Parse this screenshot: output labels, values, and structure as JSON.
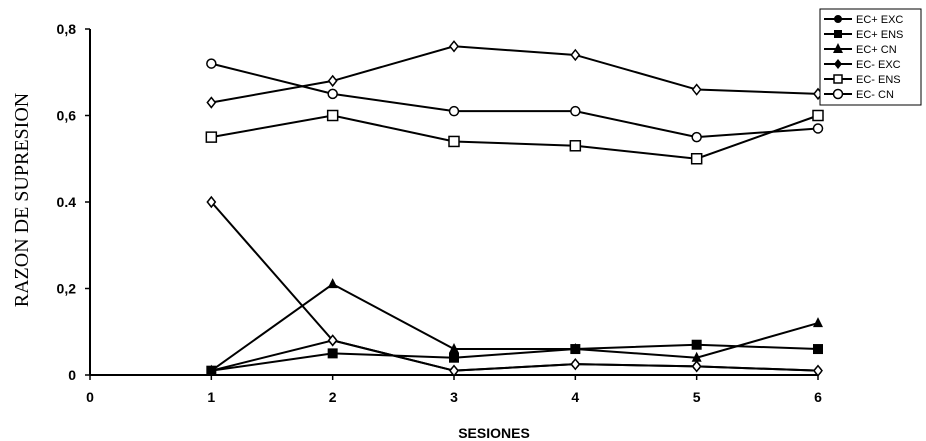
{
  "chart_data": {
    "type": "line",
    "xlabel": "SESIONES",
    "ylabel": "RAZON DE SUPRESION",
    "xlim": [
      0,
      6
    ],
    "ylim": [
      0,
      0.8
    ],
    "x_ticks": [
      "0",
      "1",
      "2",
      "3",
      "4",
      "5",
      "6"
    ],
    "y_ticks": [
      {
        "value": 0,
        "label": "0"
      },
      {
        "value": 0.2,
        "label": "0,2"
      },
      {
        "value": 0.4,
        "label": "0.4"
      },
      {
        "value": 0.6,
        "label": "0,6"
      },
      {
        "value": 0.8,
        "label": "0,8"
      }
    ],
    "grid": false,
    "legend_position": "top-right",
    "x": [
      1,
      2,
      3,
      4,
      5,
      6
    ],
    "series": [
      {
        "name": "EC+ EXC",
        "marker": "circle-filled",
        "values": [
          0.01,
          0.08,
          0.01,
          0.025,
          0.02,
          0.01
        ]
      },
      {
        "name": "EC+ ENS",
        "marker": "square-filled",
        "values": [
          0.01,
          0.05,
          0.04,
          0.06,
          0.07,
          0.06
        ]
      },
      {
        "name": "EC+ CN",
        "marker": "triangle-filled",
        "values": [
          0.01,
          0.21,
          0.06,
          0.06,
          0.04,
          0.12
        ]
      },
      {
        "name": "EC- EXC",
        "marker": "diamond-open",
        "values": [
          0.4,
          0.08,
          0.01,
          0.025,
          0.02,
          0.01
        ]
      },
      {
        "name": "EC- ENS",
        "marker": "square-open",
        "values": [
          0.55,
          0.6,
          0.54,
          0.53,
          0.5,
          0.6
        ]
      },
      {
        "name": "EC- CN",
        "marker": "circle-open",
        "values": [
          0.72,
          0.65,
          0.61,
          0.61,
          0.55,
          0.57
        ]
      }
    ],
    "extra_series_note": "",
    "upper_diamond_series": {
      "marker": "diamond-open",
      "values": [
        0.63,
        0.68,
        0.76,
        0.74,
        0.66,
        0.65
      ]
    }
  }
}
